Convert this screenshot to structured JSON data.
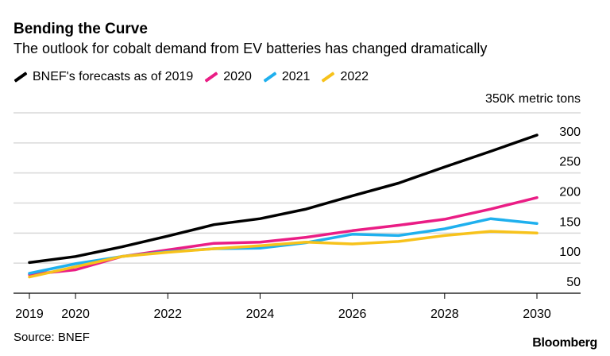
{
  "chart_data": {
    "type": "line",
    "title": "Bending the Curve",
    "subtitle": "The outlook for cobalt demand from EV batteries has changed dramatically",
    "ylabel": "350K metric tons",
    "x": [
      2019,
      2020,
      2021,
      2022,
      2023,
      2024,
      2025,
      2026,
      2027,
      2028,
      2029,
      2030
    ],
    "xticks": [
      "2019",
      "2020",
      "2022",
      "2024",
      "2026",
      "2028",
      "2030"
    ],
    "yticks": [
      "300",
      "250",
      "200",
      "150",
      "100",
      "50"
    ],
    "ylim": [
      50,
      350
    ],
    "grid": true,
    "legend_position": "top-left",
    "series": [
      {
        "name": "BNEF's forecasts as of 2019",
        "color": "#000000",
        "values": [
          101,
          111,
          127,
          145,
          164,
          174,
          190,
          212,
          233,
          260,
          286,
          313
        ]
      },
      {
        "name": "2020",
        "color": "#ea1d85",
        "values": [
          81,
          89,
          111,
          122,
          133,
          135,
          143,
          154,
          163,
          173,
          190,
          209
        ]
      },
      {
        "name": "2021",
        "color": "#1fb0ee",
        "values": [
          83,
          99,
          111,
          119,
          124,
          125,
          134,
          148,
          146,
          157,
          174,
          166
        ]
      },
      {
        "name": "2022",
        "color": "#f7c21b",
        "values": [
          77,
          94,
          111,
          118,
          124,
          129,
          135,
          132,
          136,
          146,
          153,
          150
        ]
      }
    ],
    "source": "Source: BNEF"
  },
  "logo": "Bloomberg"
}
